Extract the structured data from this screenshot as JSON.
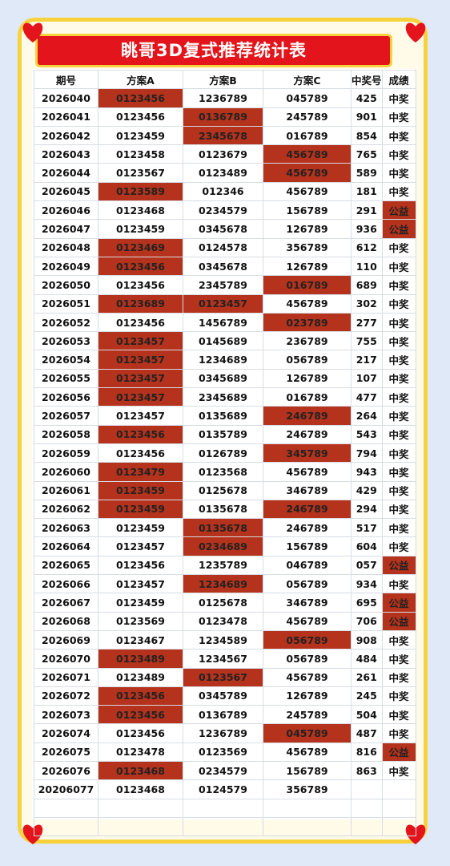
{
  "title": "眺哥3D复式推荐统计表",
  "table": {
    "header": [
      "期号",
      "方案A",
      "方案B",
      "方案C",
      "中奖号",
      "成绩"
    ],
    "rows": [
      [
        "2026040",
        "0123456",
        "1236789",
        "045789",
        "425",
        "中奖"
      ],
      [
        "2026041",
        "0123456",
        "0136789",
        "245789",
        "901",
        "中奖"
      ],
      [
        "2026042",
        "0123459",
        "2345678",
        "016789",
        "854",
        "中奖"
      ],
      [
        "2026043",
        "0123458",
        "0123679",
        "456789",
        "765",
        "中奖"
      ],
      [
        "2026044",
        "0123567",
        "0123489",
        "456789",
        "589",
        "中奖"
      ],
      [
        "2026045",
        "0123589",
        "012346",
        "456789",
        "181",
        "中奖"
      ],
      [
        "2026046",
        "0123468",
        "0234579",
        "156789",
        "291",
        "公益"
      ],
      [
        "2026047",
        "0123459",
        "0345678",
        "126789",
        "936",
        "公益"
      ],
      [
        "2026048",
        "0123469",
        "0124578",
        "356789",
        "612",
        "中奖"
      ],
      [
        "2026049",
        "0123456",
        "0345678",
        "126789",
        "110",
        "中奖"
      ],
      [
        "2026050",
        "0123456",
        "2345789",
        "016789",
        "689",
        "中奖"
      ],
      [
        "2026051",
        "0123689",
        "0123457",
        "456789",
        "302",
        "中奖"
      ],
      [
        "2026052",
        "0123456",
        "1456789",
        "023789",
        "277",
        "中奖"
      ],
      [
        "2026053",
        "0123457",
        "0145689",
        "236789",
        "755",
        "中奖"
      ],
      [
        "2026054",
        "0123457",
        "1234689",
        "056789",
        "217",
        "中奖"
      ],
      [
        "2026055",
        "0123457",
        "0345689",
        "126789",
        "107",
        "中奖"
      ],
      [
        "2026056",
        "0123457",
        "2345689",
        "016789",
        "477",
        "中奖"
      ],
      [
        "2026057",
        "0123457",
        "0135689",
        "246789",
        "264",
        "中奖"
      ],
      [
        "2026058",
        "0123456",
        "0135789",
        "246789",
        "543",
        "中奖"
      ],
      [
        "2026059",
        "0123456",
        "0126789",
        "345789",
        "794",
        "中奖"
      ],
      [
        "2026060",
        "0123479",
        "0123568",
        "456789",
        "943",
        "中奖"
      ],
      [
        "2026061",
        "0123459",
        "0125678",
        "346789",
        "429",
        "中奖"
      ],
      [
        "2026062",
        "0123459",
        "0135678",
        "246789",
        "294",
        "中奖"
      ],
      [
        "2026063",
        "0123459",
        "0135678",
        "246789",
        "517",
        "中奖"
      ],
      [
        "2026064",
        "0123457",
        "0234689",
        "156789",
        "604",
        "中奖"
      ],
      [
        "2026065",
        "0123456",
        "1235789",
        "046789",
        "057",
        "公益"
      ],
      [
        "2026066",
        "0123457",
        "1234689",
        "056789",
        "934",
        "中奖"
      ],
      [
        "2026067",
        "0123459",
        "0125678",
        "346789",
        "695",
        "公益"
      ],
      [
        "2026068",
        "0123569",
        "0123478",
        "456789",
        "706",
        "公益"
      ],
      [
        "2026069",
        "0123467",
        "1234589",
        "056789",
        "908",
        "中奖"
      ],
      [
        "2026070",
        "0123489",
        "1234567",
        "056789",
        "484",
        "中奖"
      ],
      [
        "2026071",
        "0123489",
        "0123567",
        "456789",
        "261",
        "中奖"
      ],
      [
        "2026072",
        "0123456",
        "0345789",
        "126789",
        "245",
        "中奖"
      ],
      [
        "2026073",
        "0123456",
        "0136789",
        "245789",
        "504",
        "中奖"
      ],
      [
        "2026074",
        "0123456",
        "1236789",
        "045789",
        "487",
        "中奖"
      ],
      [
        "2026075",
        "0123478",
        "0123569",
        "456789",
        "816",
        "公益"
      ],
      [
        "2026076",
        "0123468",
        "0234579",
        "156789",
        "863",
        "中奖"
      ],
      [
        "20206077",
        "0123468",
        "0124579",
        "356789"
      ]
    ]
  }
}
